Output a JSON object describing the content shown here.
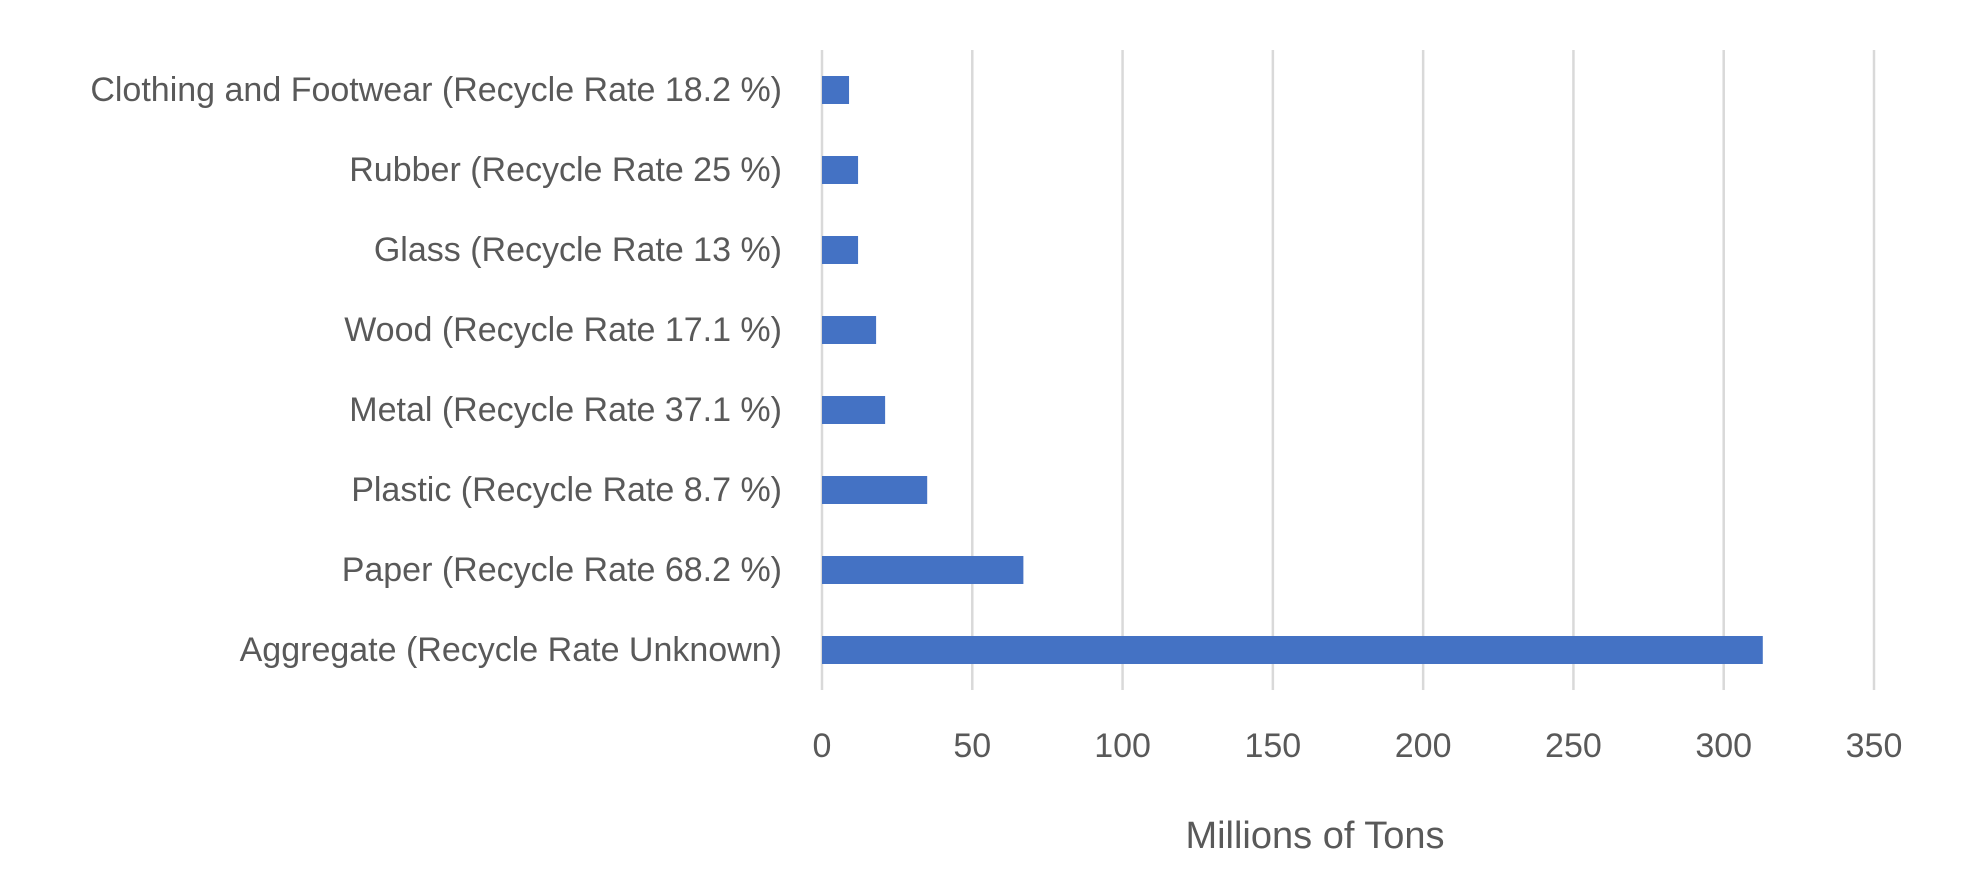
{
  "chart_data": {
    "type": "bar",
    "orientation": "horizontal",
    "categories": [
      "Aggregate (Recycle Rate Unknown)",
      "Paper (Recycle Rate 68.2 %)",
      "Plastic (Recycle Rate 8.7 %)",
      "Metal (Recycle Rate 37.1 %)",
      "Wood (Recycle Rate 17.1 %)",
      "Glass (Recycle Rate 13 %)",
      "Rubber (Recycle Rate 25 %)",
      "Clothing and Footwear (Recycle Rate 18.2 %)"
    ],
    "values": [
      313,
      67,
      35,
      21,
      18,
      12,
      12,
      9
    ],
    "title": "",
    "xlabel": "Millions of Tons",
    "ylabel": "",
    "xlim": [
      0,
      350
    ],
    "xticks": [
      "0",
      "50",
      "100",
      "150",
      "200",
      "250",
      "300",
      "350"
    ],
    "tick_values": [
      0,
      50,
      100,
      150,
      200,
      250,
      300,
      350
    ],
    "grid": true,
    "legend": "none",
    "bar_color": "#4472c4"
  }
}
